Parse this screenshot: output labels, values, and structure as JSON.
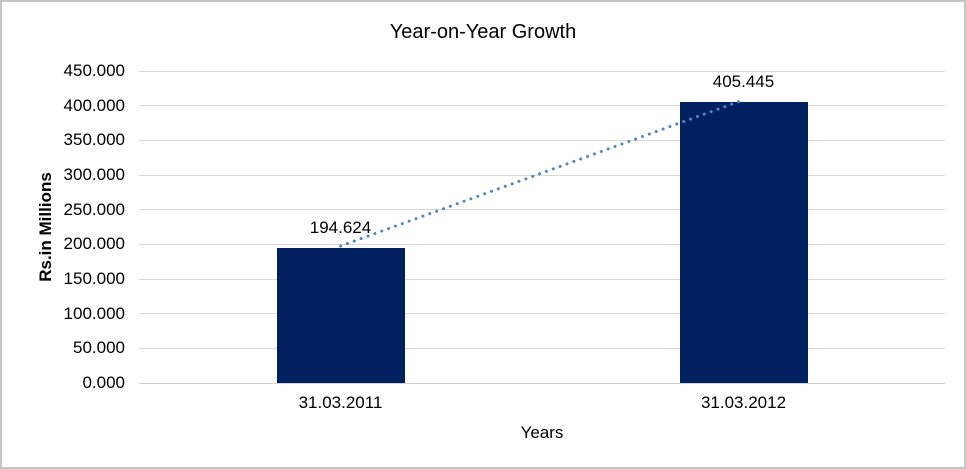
{
  "frame": {
    "background": "#ffffff",
    "border_color": "#c6c6c6"
  },
  "chart_data": {
    "type": "bar",
    "title": "Year-on-Year Growth",
    "xlabel": "Years",
    "ylabel": "Rs.in Millions",
    "categories": [
      "31.03.2011",
      "31.03.2012"
    ],
    "values": [
      194.624,
      405.445
    ],
    "data_labels": [
      "194.624",
      "405.445"
    ],
    "ylim": [
      0,
      450
    ],
    "yticks": [
      "0.000",
      "50.000",
      "100.000",
      "150.000",
      "200.000",
      "250.000",
      "300.000",
      "350.000",
      "400.000",
      "450.000"
    ],
    "grid": true,
    "legend": false,
    "trendline": {
      "style": "dotted",
      "color": "#4f87c5",
      "points": [
        194.624,
        405.445
      ]
    },
    "colors": {
      "bar": "#002060",
      "gridline": "#d9d9d9",
      "axis_line": "#d2d2d2",
      "text": "#000000"
    }
  }
}
